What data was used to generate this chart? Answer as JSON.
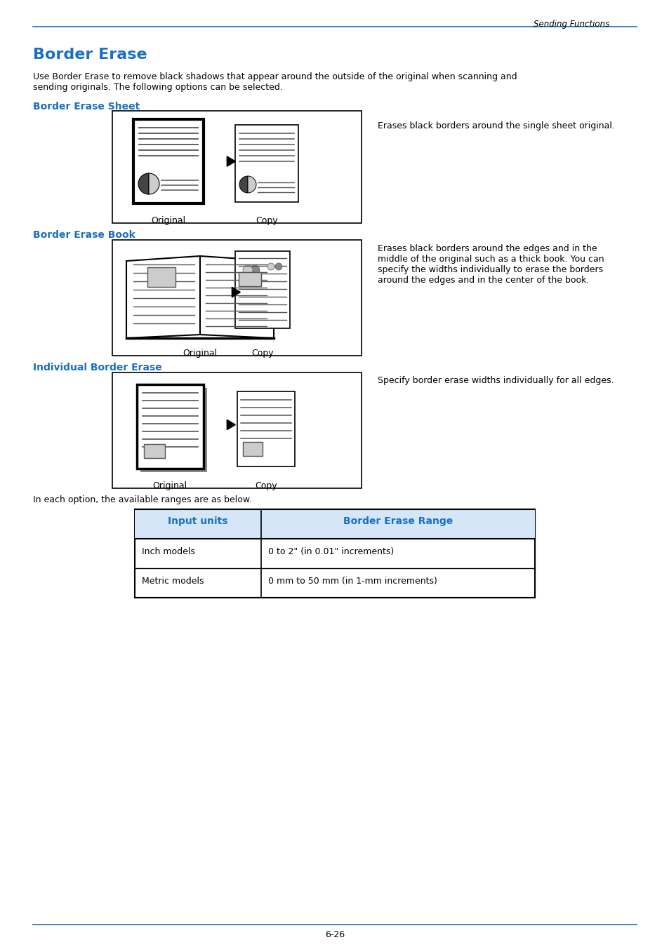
{
  "page_header": "Sending Functions",
  "page_footer": "6-26",
  "main_title": "Border Erase",
  "intro_text": "Use Border Erase to remove black shadows that appear around the outside of the original when scanning and\nsending originals. The following options can be selected.",
  "section1_title": "Border Erase Sheet",
  "section1_desc": "Erases black borders around the single sheet original.",
  "section2_title": "Border Erase Book",
  "section2_desc": "Erases black borders around the edges and in the\nmiddle of the original such as a thick book. You can\nspecify the widths individually to erase the borders\naround the edges and in the center of the book.",
  "section3_title": "Individual Border Erase",
  "section3_desc": "Specify border erase widths individually for all edges.",
  "table_note": "In each option, the available ranges are as below.",
  "table_col1_header": "Input units",
  "table_col2_header": "Border Erase Range",
  "table_rows": [
    [
      "Inch models",
      "0 to 2\" (in 0.01\" increments)"
    ],
    [
      "Metric models",
      "0 mm to 50 mm (in 1-mm increments)"
    ]
  ],
  "blue_color": "#1a6fc4",
  "bg_color": "#ffffff",
  "text_color": "#000000",
  "dark_gray": "#555555",
  "med_gray": "#888888",
  "light_gray": "#cccccc",
  "table_header_bg": "#ddeeff"
}
